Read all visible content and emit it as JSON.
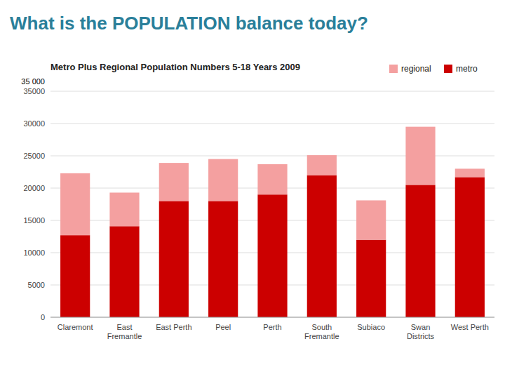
{
  "chart_data": {
    "type": "bar",
    "stacked": true,
    "title": "What is the POPULATION balance today?",
    "subtitle": "Metro Plus Regional Population Numbers 5-18 Years 2009",
    "categories": [
      "Claremont",
      "East\nFremantle",
      "East Perth",
      "Peel",
      "Perth",
      "South\nFremantle",
      "Subiaco",
      "Swan\nDistricts",
      "West Perth"
    ],
    "series": [
      {
        "name": "metro",
        "color": "#CC0000",
        "values": [
          12700,
          14100,
          18000,
          18000,
          19000,
          22000,
          12000,
          20500,
          21700
        ]
      },
      {
        "name": "regional",
        "color": "#F4A0A0",
        "values": [
          9600,
          5200,
          5900,
          6500,
          4700,
          3100,
          6100,
          9000,
          1300
        ]
      }
    ],
    "ylim": [
      0,
      35000
    ],
    "yticks": [
      0,
      5000,
      10000,
      15000,
      20000,
      25000,
      30000,
      35000
    ],
    "grid": true,
    "legend": "top right",
    "annotations": [
      {
        "text": "35 000",
        "y": 35000
      }
    ]
  }
}
